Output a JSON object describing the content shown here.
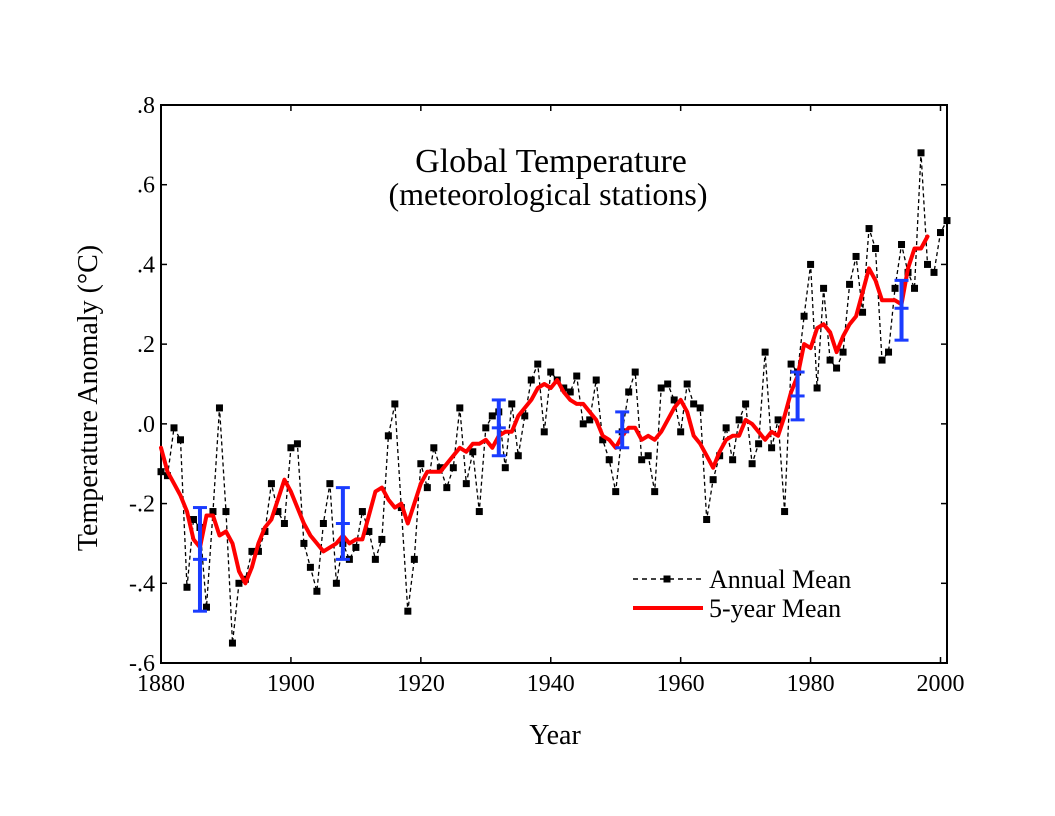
{
  "chart_data": {
    "type": "line",
    "title": "Global Temperature",
    "subtitle": "(meteorological stations)",
    "xlabel": "Year",
    "ylabel": "Temperature Anomaly (°C)",
    "xlim": [
      1880,
      2001
    ],
    "ylim": [
      -0.6,
      0.8
    ],
    "x_ticks": [
      1880,
      1900,
      1920,
      1940,
      1960,
      1980,
      2000
    ],
    "x_tick_labels": [
      "1880",
      "1900",
      "1920",
      "1940",
      "1960",
      "1980",
      "2000"
    ],
    "y_ticks": [
      -0.6,
      -0.4,
      -0.2,
      0.0,
      0.2,
      0.4,
      0.6,
      0.8
    ],
    "y_tick_labels": [
      "-.6",
      "-.4",
      "-.2",
      ".0",
      ".2",
      ".4",
      ".6",
      ".8"
    ],
    "legend_position": "bottom-right",
    "colors": {
      "annual": "#000000",
      "five_year": "#ff0000",
      "error_bars": "#1a3cff",
      "frame": "#000000"
    },
    "series": [
      {
        "name": "Annual Mean",
        "style": "dashed-with-square-markers",
        "x": [
          1880,
          1881,
          1882,
          1883,
          1884,
          1885,
          1886,
          1887,
          1888,
          1889,
          1890,
          1891,
          1892,
          1893,
          1894,
          1895,
          1896,
          1897,
          1898,
          1899,
          1900,
          1901,
          1902,
          1903,
          1904,
          1905,
          1906,
          1907,
          1908,
          1909,
          1910,
          1911,
          1912,
          1913,
          1914,
          1915,
          1916,
          1917,
          1918,
          1919,
          1920,
          1921,
          1922,
          1923,
          1924,
          1925,
          1926,
          1927,
          1928,
          1929,
          1930,
          1931,
          1932,
          1933,
          1934,
          1935,
          1936,
          1937,
          1938,
          1939,
          1940,
          1941,
          1942,
          1943,
          1944,
          1945,
          1946,
          1947,
          1948,
          1949,
          1950,
          1951,
          1952,
          1953,
          1954,
          1955,
          1956,
          1957,
          1958,
          1959,
          1960,
          1961,
          1962,
          1963,
          1964,
          1965,
          1966,
          1967,
          1968,
          1969,
          1970,
          1971,
          1972,
          1973,
          1974,
          1975,
          1976,
          1977,
          1978,
          1979,
          1980,
          1981,
          1982,
          1983,
          1984,
          1985,
          1986,
          1987,
          1988,
          1989,
          1990,
          1991,
          1992,
          1993,
          1994,
          1995,
          1996,
          1997,
          1998,
          1999,
          2000,
          2001
        ],
        "values": [
          -0.12,
          -0.13,
          -0.01,
          -0.04,
          -0.41,
          -0.24,
          -0.26,
          -0.46,
          -0.22,
          0.04,
          -0.22,
          -0.55,
          -0.4,
          -0.39,
          -0.32,
          -0.32,
          -0.27,
          -0.15,
          -0.22,
          -0.25,
          -0.06,
          -0.05,
          -0.3,
          -0.36,
          -0.42,
          -0.25,
          -0.15,
          -0.4,
          -0.3,
          -0.34,
          -0.31,
          -0.22,
          -0.27,
          -0.34,
          -0.29,
          -0.03,
          0.05,
          -0.21,
          -0.47,
          -0.34,
          -0.1,
          -0.16,
          -0.06,
          -0.11,
          -0.16,
          -0.11,
          0.04,
          -0.15,
          -0.07,
          -0.22,
          -0.01,
          0.02,
          0.03,
          -0.11,
          0.05,
          -0.08,
          0.02,
          0.11,
          0.15,
          -0.02,
          0.13,
          0.11,
          0.09,
          0.08,
          0.12,
          0.0,
          0.01,
          0.11,
          -0.04,
          -0.09,
          -0.17,
          -0.02,
          0.08,
          0.13,
          -0.09,
          -0.08,
          -0.17,
          0.09,
          0.1,
          0.06,
          -0.02,
          0.1,
          0.05,
          0.04,
          -0.24,
          -0.14,
          -0.08,
          -0.01,
          -0.09,
          0.01,
          0.05,
          -0.1,
          -0.05,
          0.18,
          -0.06,
          0.01,
          -0.22,
          0.15,
          0.13,
          0.27,
          0.4,
          0.09,
          0.34,
          0.16,
          0.14,
          0.18,
          0.35,
          0.42,
          0.28,
          0.49,
          0.44,
          0.16,
          0.18,
          0.34,
          0.45,
          0.38,
          0.34,
          0.68,
          0.4,
          0.38,
          0.48,
          0.51
        ]
      },
      {
        "name": "5-year Mean",
        "style": "solid-thick",
        "x": [
          1880,
          1881,
          1882,
          1883,
          1884,
          1885,
          1886,
          1887,
          1888,
          1889,
          1890,
          1891,
          1892,
          1893,
          1894,
          1895,
          1896,
          1897,
          1898,
          1899,
          1900,
          1901,
          1902,
          1903,
          1904,
          1905,
          1906,
          1907,
          1908,
          1909,
          1910,
          1911,
          1912,
          1913,
          1914,
          1915,
          1916,
          1917,
          1918,
          1919,
          1920,
          1921,
          1922,
          1923,
          1924,
          1925,
          1926,
          1927,
          1928,
          1929,
          1930,
          1931,
          1932,
          1933,
          1934,
          1935,
          1936,
          1937,
          1938,
          1939,
          1940,
          1941,
          1942,
          1943,
          1944,
          1945,
          1946,
          1947,
          1948,
          1949,
          1950,
          1951,
          1952,
          1953,
          1954,
          1955,
          1956,
          1957,
          1958,
          1959,
          1960,
          1961,
          1962,
          1963,
          1964,
          1965,
          1966,
          1967,
          1968,
          1969,
          1970,
          1971,
          1972,
          1973,
          1974,
          1975,
          1976,
          1977,
          1978,
          1979,
          1980,
          1981,
          1982,
          1983,
          1984,
          1985,
          1986,
          1987,
          1988,
          1989,
          1990,
          1991,
          1992,
          1993,
          1994,
          1995,
          1996,
          1997,
          1998
        ],
        "values": [
          -0.06,
          -0.12,
          -0.15,
          -0.18,
          -0.22,
          -0.29,
          -0.31,
          -0.23,
          -0.23,
          -0.28,
          -0.27,
          -0.3,
          -0.37,
          -0.4,
          -0.36,
          -0.3,
          -0.26,
          -0.24,
          -0.19,
          -0.14,
          -0.17,
          -0.21,
          -0.25,
          -0.28,
          -0.3,
          -0.32,
          -0.31,
          -0.3,
          -0.28,
          -0.3,
          -0.29,
          -0.29,
          -0.23,
          -0.17,
          -0.16,
          -0.19,
          -0.21,
          -0.2,
          -0.25,
          -0.2,
          -0.15,
          -0.12,
          -0.12,
          -0.12,
          -0.1,
          -0.08,
          -0.06,
          -0.07,
          -0.05,
          -0.05,
          -0.04,
          -0.06,
          -0.03,
          -0.02,
          -0.02,
          0.02,
          0.04,
          0.06,
          0.09,
          0.1,
          0.09,
          0.11,
          0.08,
          0.06,
          0.05,
          0.05,
          0.03,
          0.01,
          -0.03,
          -0.04,
          -0.06,
          -0.03,
          -0.01,
          -0.01,
          -0.04,
          -0.03,
          -0.04,
          -0.02,
          0.01,
          0.04,
          0.06,
          0.03,
          -0.03,
          -0.05,
          -0.08,
          -0.11,
          -0.07,
          -0.04,
          -0.03,
          -0.03,
          0.01,
          0.0,
          -0.02,
          -0.04,
          -0.02,
          -0.03,
          0.02,
          0.08,
          0.12,
          0.2,
          0.19,
          0.24,
          0.25,
          0.23,
          0.18,
          0.22,
          0.25,
          0.27,
          0.33,
          0.39,
          0.36,
          0.31,
          0.31,
          0.31,
          0.3,
          0.39,
          0.44,
          0.44,
          0.47
        ]
      }
    ],
    "error_bars": [
      {
        "x": 1886,
        "center": -0.34,
        "low": -0.47,
        "high": -0.21
      },
      {
        "x": 1908,
        "center": -0.25,
        "low": -0.34,
        "high": -0.16
      },
      {
        "x": 1932,
        "center": -0.01,
        "low": -0.08,
        "high": 0.06
      },
      {
        "x": 1951,
        "center": -0.02,
        "low": -0.06,
        "high": 0.03
      },
      {
        "x": 1978,
        "center": 0.07,
        "low": 0.01,
        "high": 0.13
      },
      {
        "x": 1994,
        "center": 0.29,
        "low": 0.21,
        "high": 0.36
      }
    ],
    "legend": [
      {
        "label": "Annual Mean",
        "style": "dashed-with-square-markers"
      },
      {
        "label": "5-year Mean",
        "style": "solid-thick"
      }
    ]
  }
}
